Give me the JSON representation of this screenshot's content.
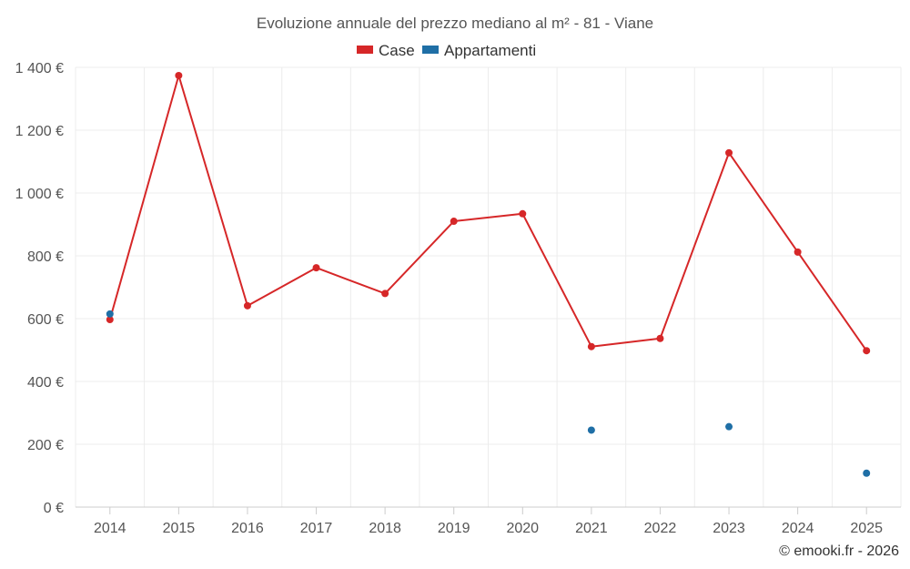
{
  "chart_data": {
    "type": "line",
    "title": "Evoluzione annuale del prezzo mediano al m² - 81 - Viane",
    "categories": [
      "2014",
      "2015",
      "2016",
      "2017",
      "2018",
      "2019",
      "2020",
      "2021",
      "2022",
      "2023",
      "2024",
      "2025"
    ],
    "ylim": [
      0,
      1400
    ],
    "yticks": [
      0,
      200,
      400,
      600,
      800,
      1000,
      1200,
      1400
    ],
    "ytick_labels": [
      "0 €",
      "200 €",
      "400 €",
      "600 €",
      "800 €",
      "1 000 €",
      "1 200 €",
      "1 400 €"
    ],
    "series": [
      {
        "name": "Case",
        "color": "#d62728",
        "style": "line",
        "values": [
          597,
          1374,
          641,
          762,
          680,
          910,
          934,
          511,
          537,
          1128,
          812,
          498
        ]
      },
      {
        "name": "Appartamenti",
        "color": "#1f6fa6",
        "style": "points",
        "values": [
          615,
          null,
          null,
          null,
          null,
          null,
          null,
          245,
          null,
          256,
          null,
          108
        ]
      }
    ],
    "legend_position": "top-center",
    "grid": true
  },
  "credit": "© emooki.fr - 2026"
}
